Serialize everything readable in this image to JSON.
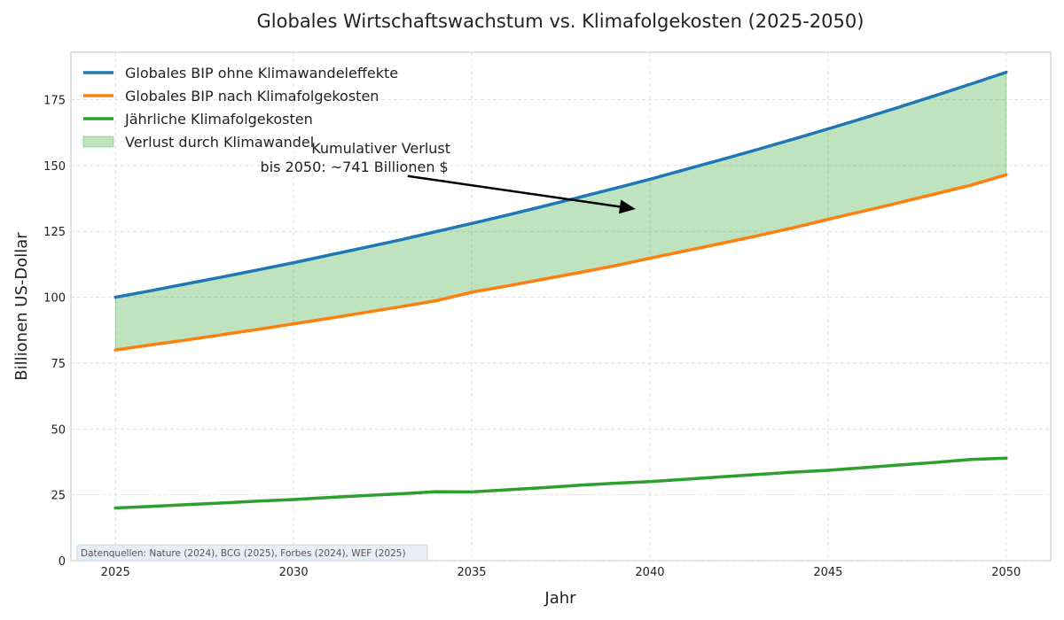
{
  "chart_data": {
    "type": "line",
    "title": "Globales Wirtschaftswachstum vs. Klimafolgekosten (2025-2050)",
    "xlabel": "Jahr",
    "ylabel": "Billionen US-Dollar",
    "xlim": [
      2023.75,
      2051.25
    ],
    "ylim": [
      0,
      193
    ],
    "xticks": [
      2025,
      2030,
      2035,
      2040,
      2045,
      2050
    ],
    "yticks": [
      0,
      25,
      50,
      75,
      100,
      125,
      150,
      175
    ],
    "grid": true,
    "legend_position": "top-left",
    "x": [
      2025,
      2026,
      2027,
      2028,
      2029,
      2030,
      2031,
      2032,
      2033,
      2034,
      2035,
      2036,
      2037,
      2038,
      2039,
      2040,
      2041,
      2042,
      2043,
      2044,
      2045,
      2046,
      2047,
      2048,
      2049,
      2050
    ],
    "series": [
      {
        "name": "Globales BIP ohne Klimawandeleffekte",
        "color": "#1f77b4",
        "values": [
          100.0,
          102.5,
          105.1,
          107.7,
          110.4,
          113.1,
          116.0,
          118.9,
          121.8,
          124.9,
          128.0,
          131.2,
          134.5,
          137.9,
          141.3,
          144.8,
          148.5,
          152.2,
          156.0,
          159.9,
          163.9,
          168.0,
          172.2,
          176.5,
          180.9,
          185.4
        ]
      },
      {
        "name": "Globales BIP nach Klimafolgekosten",
        "color": "#ff7f0e",
        "values": [
          80.0,
          81.9,
          83.8,
          85.8,
          87.8,
          89.9,
          92.0,
          94.2,
          96.4,
          98.7,
          101.9,
          104.3,
          106.8,
          109.3,
          111.9,
          114.8,
          117.6,
          120.4,
          123.3,
          126.3,
          129.6,
          132.7,
          135.9,
          139.2,
          142.5,
          146.5
        ]
      },
      {
        "name": "Jährliche Klimafolgekosten",
        "color": "#2ca02c",
        "values": [
          20.0,
          20.6,
          21.3,
          21.9,
          22.6,
          23.2,
          24.0,
          24.7,
          25.4,
          26.2,
          26.1,
          26.9,
          27.7,
          28.6,
          29.4,
          30.0,
          30.9,
          31.8,
          32.7,
          33.6,
          34.3,
          35.3,
          36.3,
          37.3,
          38.4,
          38.9
        ]
      }
    ],
    "fill_between": {
      "name": "Verlust durch Klimawandel",
      "color": "#2ca02c",
      "opacity": 0.3,
      "upper_series": 0,
      "lower_series": 1
    },
    "annotation": {
      "lines": [
        "Kumulativer Verlust",
        "bis 2050: ~741 Billionen $"
      ],
      "text_x": 2032.7,
      "arrow_from": [
        2033.2,
        146
      ],
      "arrow_to": [
        2039.6,
        133.5
      ]
    },
    "source_note": "Datenquellen: Nature (2024), BCG (2025), Forbes (2024), WEF (2025)"
  }
}
